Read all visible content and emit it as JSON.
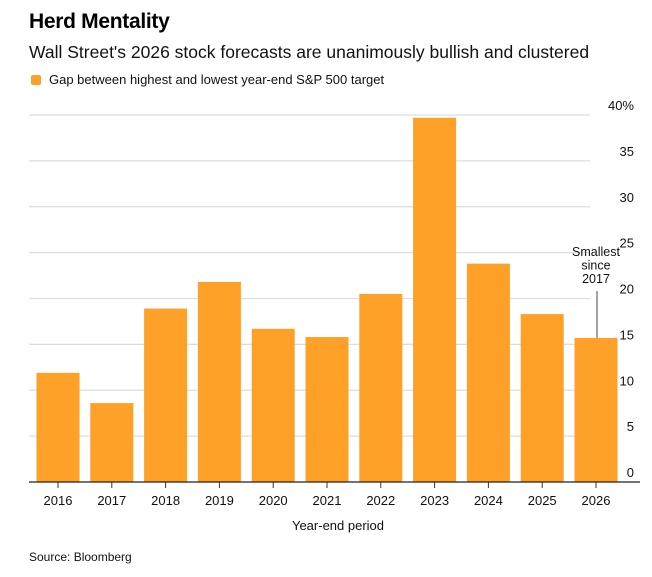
{
  "title": "Herd Mentality",
  "subtitle": "Wall Street's 2026 stock forecasts are unanimously bullish and clustered",
  "legend": {
    "label": "Gap between highest and lowest year-end S&P 500 target",
    "color": "#FFA028"
  },
  "source": "Source: Bloomberg",
  "chart_data": {
    "type": "bar",
    "title": "Herd Mentality",
    "subtitle": "Wall Street's 2026 stock forecasts are unanimously bullish and clustered",
    "categories": [
      "2016",
      "2017",
      "2018",
      "2019",
      "2020",
      "2021",
      "2022",
      "2023",
      "2024",
      "2025",
      "2026"
    ],
    "series": [
      {
        "name": "Gap between highest and lowest year-end S&P 500 target",
        "values": [
          11.9,
          8.6,
          18.9,
          21.8,
          16.7,
          15.8,
          20.5,
          39.7,
          23.8,
          18.3,
          15.7
        ],
        "color": "#FFA028"
      }
    ],
    "xlabel": "Year-end period",
    "ylabel": "",
    "ylim": [
      0,
      40
    ],
    "yticks": [
      0,
      5,
      10,
      15,
      20,
      25,
      30,
      35,
      40
    ],
    "ytick_labels": [
      "0",
      "5",
      "10",
      "15",
      "20",
      "25",
      "30",
      "35",
      "40%"
    ],
    "yaxis_side": "right",
    "grid": true,
    "legend_position": "top-left",
    "annotations": [
      {
        "category": "2026",
        "text_lines": [
          "Smallest",
          "since",
          "2017"
        ]
      }
    ]
  }
}
